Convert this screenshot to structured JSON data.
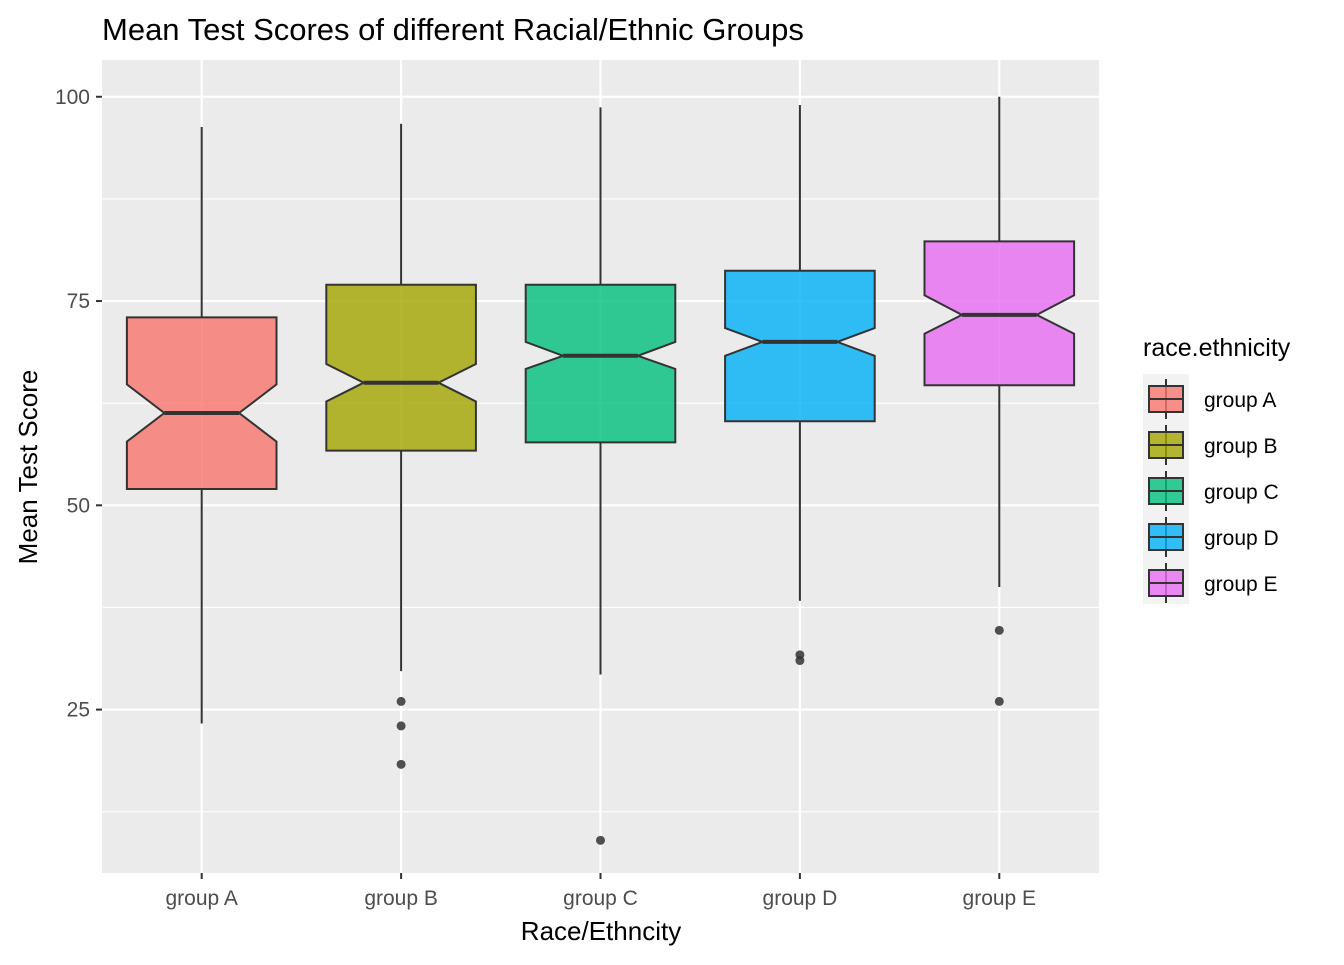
{
  "chart_data": {
    "type": "boxplot",
    "notched": true,
    "title": "Mean Test Scores of different Racial/Ethnic Groups",
    "xlabel": "Race/Ethncity",
    "ylabel": "Mean Test Score",
    "ylim": [
      5,
      104.5
    ],
    "yticks": [
      25,
      50,
      75,
      100
    ],
    "y_minor_ticks": [
      12.5,
      37.5,
      62.5,
      87.5
    ],
    "grid": true,
    "panel_background": "#ebebeb",
    "grid_color": "#ffffff",
    "categories": [
      "group A",
      "group B",
      "group C",
      "group D",
      "group E"
    ],
    "legend": {
      "title": "race.ethnicity",
      "position": "right",
      "entries": [
        "group A",
        "group B",
        "group C",
        "group D",
        "group E"
      ]
    },
    "series": [
      {
        "name": "group A",
        "color": "#f8766d",
        "whisker_low": 23.3,
        "q1": 52.0,
        "median": 61.3,
        "q3": 73.0,
        "whisker_high": 96.3,
        "notch_low": 57.8,
        "notch_high": 64.8,
        "outliers": []
      },
      {
        "name": "group B",
        "color": "#a3a500",
        "whisker_low": 29.7,
        "q1": 56.7,
        "median": 65.0,
        "q3": 77.0,
        "whisker_high": 96.7,
        "notch_low": 62.7,
        "notch_high": 67.3,
        "outliers": [
          26.0,
          23.0,
          18.3
        ]
      },
      {
        "name": "group C",
        "color": "#00bf7d",
        "whisker_low": 29.3,
        "q1": 57.7,
        "median": 68.3,
        "q3": 77.0,
        "whisker_high": 98.7,
        "notch_low": 66.7,
        "notch_high": 70.0,
        "outliers": [
          9.0
        ]
      },
      {
        "name": "group D",
        "color": "#00b0f6",
        "whisker_low": 38.3,
        "q1": 60.3,
        "median": 70.0,
        "q3": 78.7,
        "whisker_high": 99.0,
        "notch_low": 68.3,
        "notch_high": 71.7,
        "outliers": [
          31.7,
          31.0
        ]
      },
      {
        "name": "group E",
        "color": "#e76bf3",
        "whisker_low": 40.0,
        "q1": 64.7,
        "median": 73.3,
        "q3": 82.3,
        "whisker_high": 100.0,
        "notch_low": 71.0,
        "notch_high": 75.7,
        "outliers": [
          34.7,
          26.0
        ]
      }
    ]
  }
}
